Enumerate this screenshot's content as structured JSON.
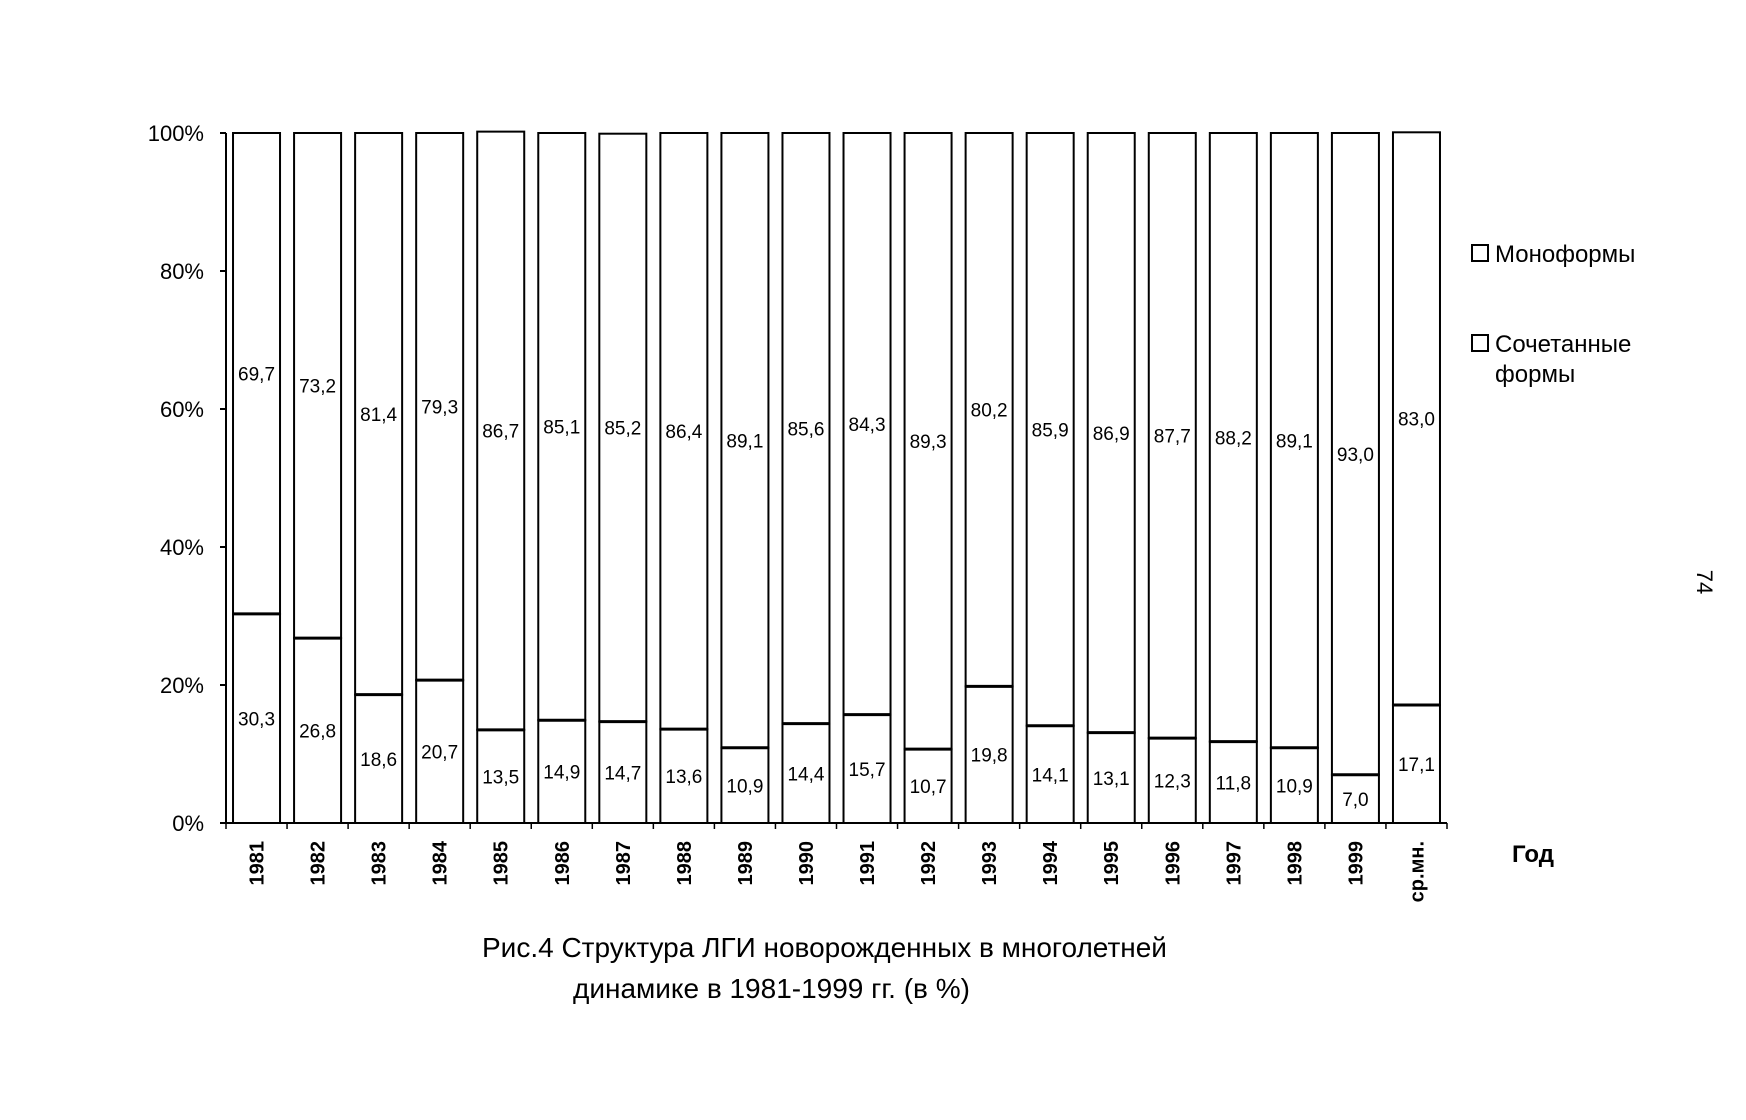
{
  "page_number": "74",
  "caption": {
    "line1": "Рис.4 Структура ЛГИ новорожденных в многолетней",
    "line2": "динамике в 1981-1999 гг. (в %)"
  },
  "chart_data": {
    "type": "bar",
    "stacked": true,
    "percent_stacked": true,
    "title": "",
    "xlabel": "Год",
    "ylabel": "",
    "ylim": [
      0,
      100
    ],
    "yticks": [
      "0%",
      "20%",
      "40%",
      "60%",
      "80%",
      "100%"
    ],
    "grid": false,
    "legend_position": "right",
    "categories": [
      "1981",
      "1982",
      "1983",
      "1984",
      "1985",
      "1986",
      "1987",
      "1988",
      "1989",
      "1990",
      "1991",
      "1992",
      "1993",
      "1994",
      "1995",
      "1996",
      "1997",
      "1998",
      "1999",
      "ср.мн."
    ],
    "series": [
      {
        "name": "Сочетанные формы",
        "values": [
          30.3,
          26.8,
          18.6,
          20.7,
          13.5,
          14.9,
          14.7,
          13.6,
          10.9,
          14.4,
          15.7,
          10.7,
          19.8,
          14.1,
          13.1,
          12.3,
          11.8,
          10.9,
          7.0,
          17.1
        ],
        "labels": [
          "30,3",
          "26,8",
          "18,6",
          "20,7",
          "13,5",
          "14,9",
          "14,7",
          "13,6",
          "10,9",
          "14,4",
          "15,7",
          "10,7",
          "19,8",
          "14,1",
          "13,1",
          "12,3",
          "11,8",
          "10,9",
          "7,0",
          "17,1"
        ],
        "color": "#ffffff"
      },
      {
        "name": "Моноформы",
        "values": [
          69.7,
          73.2,
          81.4,
          79.3,
          86.7,
          85.1,
          85.2,
          86.4,
          89.1,
          85.6,
          84.3,
          89.3,
          80.2,
          85.9,
          86.9,
          87.7,
          88.2,
          89.1,
          93.0,
          83.0
        ],
        "labels": [
          "69,7",
          "73,2",
          "81,4",
          "79,3",
          "86,7",
          "85,1",
          "85,2",
          "86,4",
          "89,1",
          "85,6",
          "84,3",
          "89,3",
          "80,2",
          "85,9",
          "86,9",
          "87,7",
          "88,2",
          "89,1",
          "93,0",
          "83,0"
        ],
        "color": "#ffffff"
      }
    ],
    "legend": [
      {
        "lines": [
          "Моноформы"
        ]
      },
      {
        "lines": [
          "Сочетанные",
          "формы"
        ]
      }
    ]
  }
}
